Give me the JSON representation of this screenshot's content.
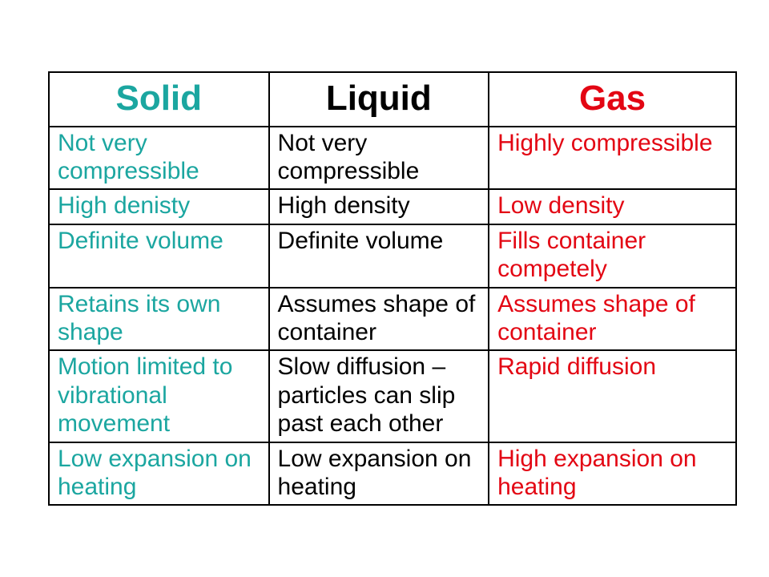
{
  "colors": {
    "solid": "#1ba6a0",
    "liquid": "#000000",
    "gas": "#e30613"
  },
  "header": {
    "solid": "Solid",
    "liquid": "Liquid",
    "gas": "Gas"
  },
  "rows": [
    {
      "solid": "Not very compressible",
      "liquid": "Not very compressible",
      "gas": "Highly compressible"
    },
    {
      "solid": "High denisty",
      "liquid": "High density",
      "gas": "Low density"
    },
    {
      "solid": "Definite volume",
      "liquid": "Definite volume",
      "gas": "Fills container competely"
    },
    {
      "solid": "Retains its own shape",
      "liquid": "Assumes shape of container",
      "gas": "Assumes shape of container"
    },
    {
      "solid": "Motion limited to vibrational movement",
      "liquid": "Slow diffusion – particles can slip past each other",
      "gas": "Rapid diffusion"
    },
    {
      "solid": "Low expansion on heating",
      "liquid": "Low expansion on heating",
      "gas": "High expansion on heating"
    }
  ]
}
